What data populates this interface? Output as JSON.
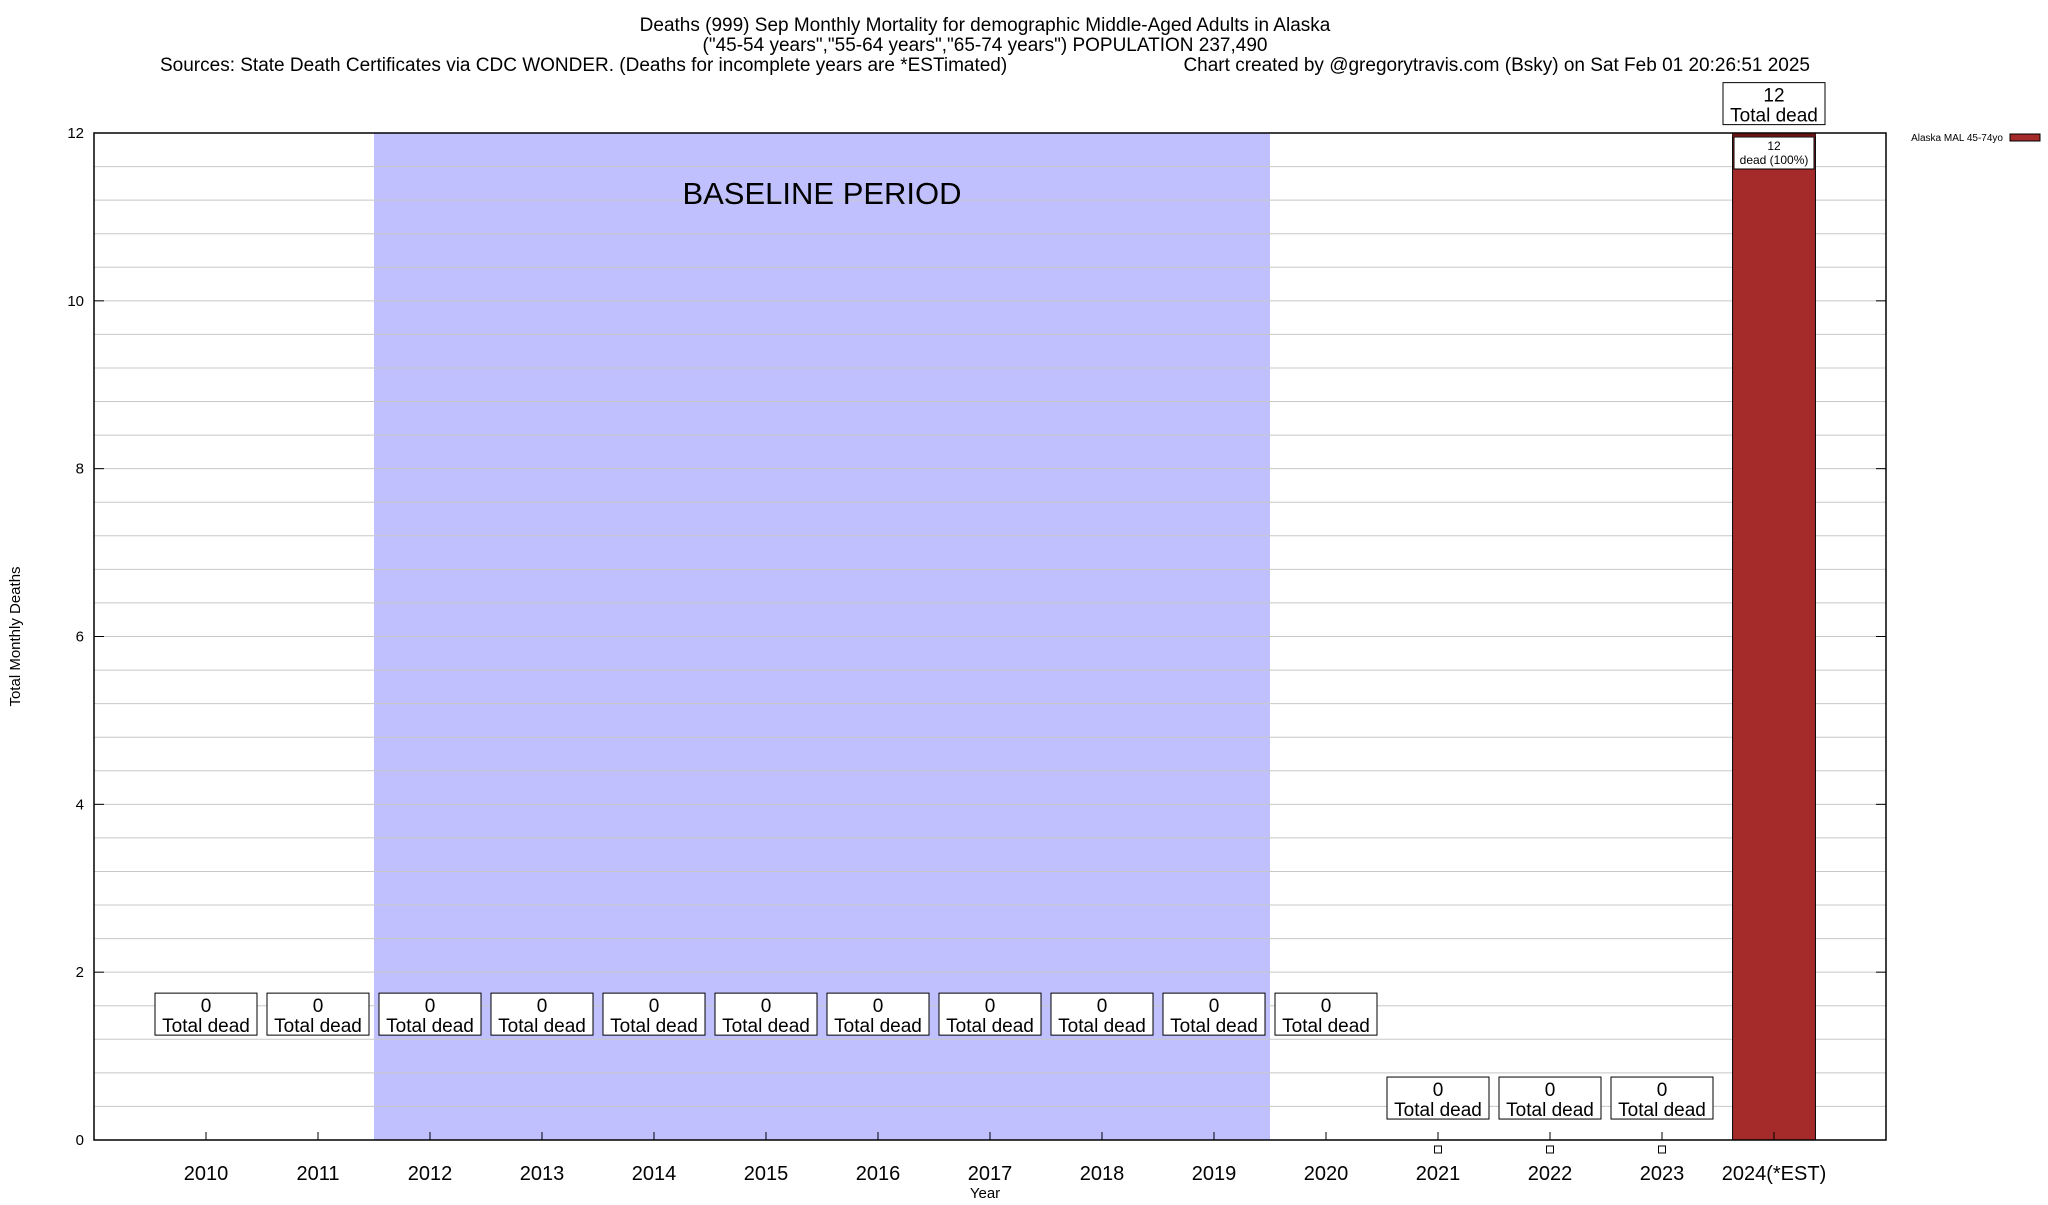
{
  "chart_data": {
    "type": "bar",
    "title_lines": [
      "Deaths (999) Sep Monthly Mortality for demographic Middle-Aged Adults in Alaska",
      "(\"45-54 years\",\"55-64 years\",\"65-74 years\") POPULATION 237,490"
    ],
    "sources": "Sources: State Death Certificates via CDC WONDER. (Deaths for incomplete years are *ESTimated)",
    "credit": "Chart created by @gregorytravis.com (Bsky) on Sat Feb 01 20:26:51 2025",
    "xlabel": "Year",
    "ylabel": "Total Monthly Deaths",
    "ylim": [
      0,
      12
    ],
    "y_ticks": [
      0,
      2,
      4,
      6,
      8,
      10,
      12
    ],
    "y_minor_step": 0.4,
    "grid": true,
    "categories": [
      "2010",
      "2011",
      "2012",
      "2013",
      "2014",
      "2015",
      "2016",
      "2017",
      "2018",
      "2019",
      "2020",
      "2021",
      "2022",
      "2023",
      "2024(*EST)"
    ],
    "series": [
      {
        "name": "Alaska MAL 45-74yo",
        "color": "#a52a2a",
        "values": [
          0,
          0,
          0,
          0,
          0,
          0,
          0,
          0,
          0,
          0,
          0,
          0,
          0,
          0,
          12
        ]
      }
    ],
    "total_labels": [
      {
        "count": "0",
        "text": "Total dead",
        "y": 1.5
      },
      {
        "count": "0",
        "text": "Total dead",
        "y": 1.5
      },
      {
        "count": "0",
        "text": "Total dead",
        "y": 1.5
      },
      {
        "count": "0",
        "text": "Total dead",
        "y": 1.5
      },
      {
        "count": "0",
        "text": "Total dead",
        "y": 1.5
      },
      {
        "count": "0",
        "text": "Total dead",
        "y": 1.5
      },
      {
        "count": "0",
        "text": "Total dead",
        "y": 1.5
      },
      {
        "count": "0",
        "text": "Total dead",
        "y": 1.5
      },
      {
        "count": "0",
        "text": "Total dead",
        "y": 1.5
      },
      {
        "count": "0",
        "text": "Total dead",
        "y": 1.5
      },
      {
        "count": "0",
        "text": "Total dead",
        "y": 1.5
      },
      {
        "count": "0",
        "text": "Total dead",
        "y": 0.5
      },
      {
        "count": "0",
        "text": "Total dead",
        "y": 0.5
      },
      {
        "count": "0",
        "text": "Total dead",
        "y": 0.5
      },
      {
        "count": "12",
        "text": "Total dead",
        "y": 12.35
      }
    ],
    "small_markers": [
      "2021",
      "2022",
      "2023"
    ],
    "bar_label": {
      "category": "2024(*EST)",
      "lines": [
        "12",
        "dead (100%)"
      ]
    },
    "baseline": {
      "label": "BASELINE PERIOD",
      "from": "2012",
      "to": "2019",
      "color": "#c0c0ff"
    },
    "legend": {
      "placement": "top-right",
      "entry": "Alaska MAL 45-74yo"
    }
  }
}
